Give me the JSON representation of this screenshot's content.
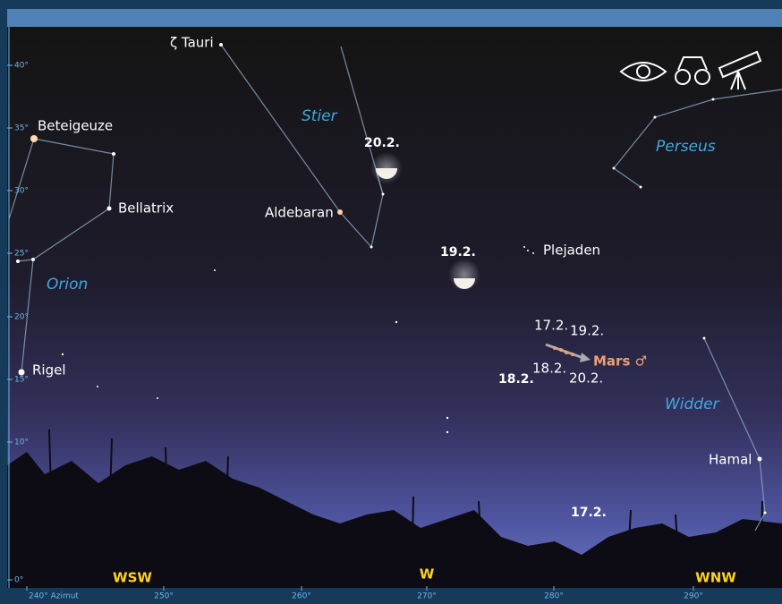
{
  "stars": [
    "ζ Tauri",
    "Beteigeuze",
    "Bellatrix",
    "Aldebaran",
    "Plejaden",
    "Rigel",
    "Hamal"
  ],
  "constellations": [
    "Stier",
    "Perseus",
    "Orion",
    "Widder"
  ],
  "moon_dates": [
    "20.2.",
    "19.2.",
    "18.2.",
    "17.2."
  ],
  "mars": {
    "label": "Mars ♂",
    "dates": [
      "17.2.",
      "19.2.",
      "18.2.",
      "20.2."
    ]
  },
  "altitude_ticks": [
    "40°",
    "35°",
    "30°",
    "25°",
    "20°",
    "15°",
    "10°",
    "0°"
  ],
  "azimuth_ticks": [
    "240° Azimut",
    "250°",
    "260°",
    "270°",
    "280°",
    "290°"
  ],
  "directions": [
    "WSW",
    "W",
    "WNW"
  ]
}
